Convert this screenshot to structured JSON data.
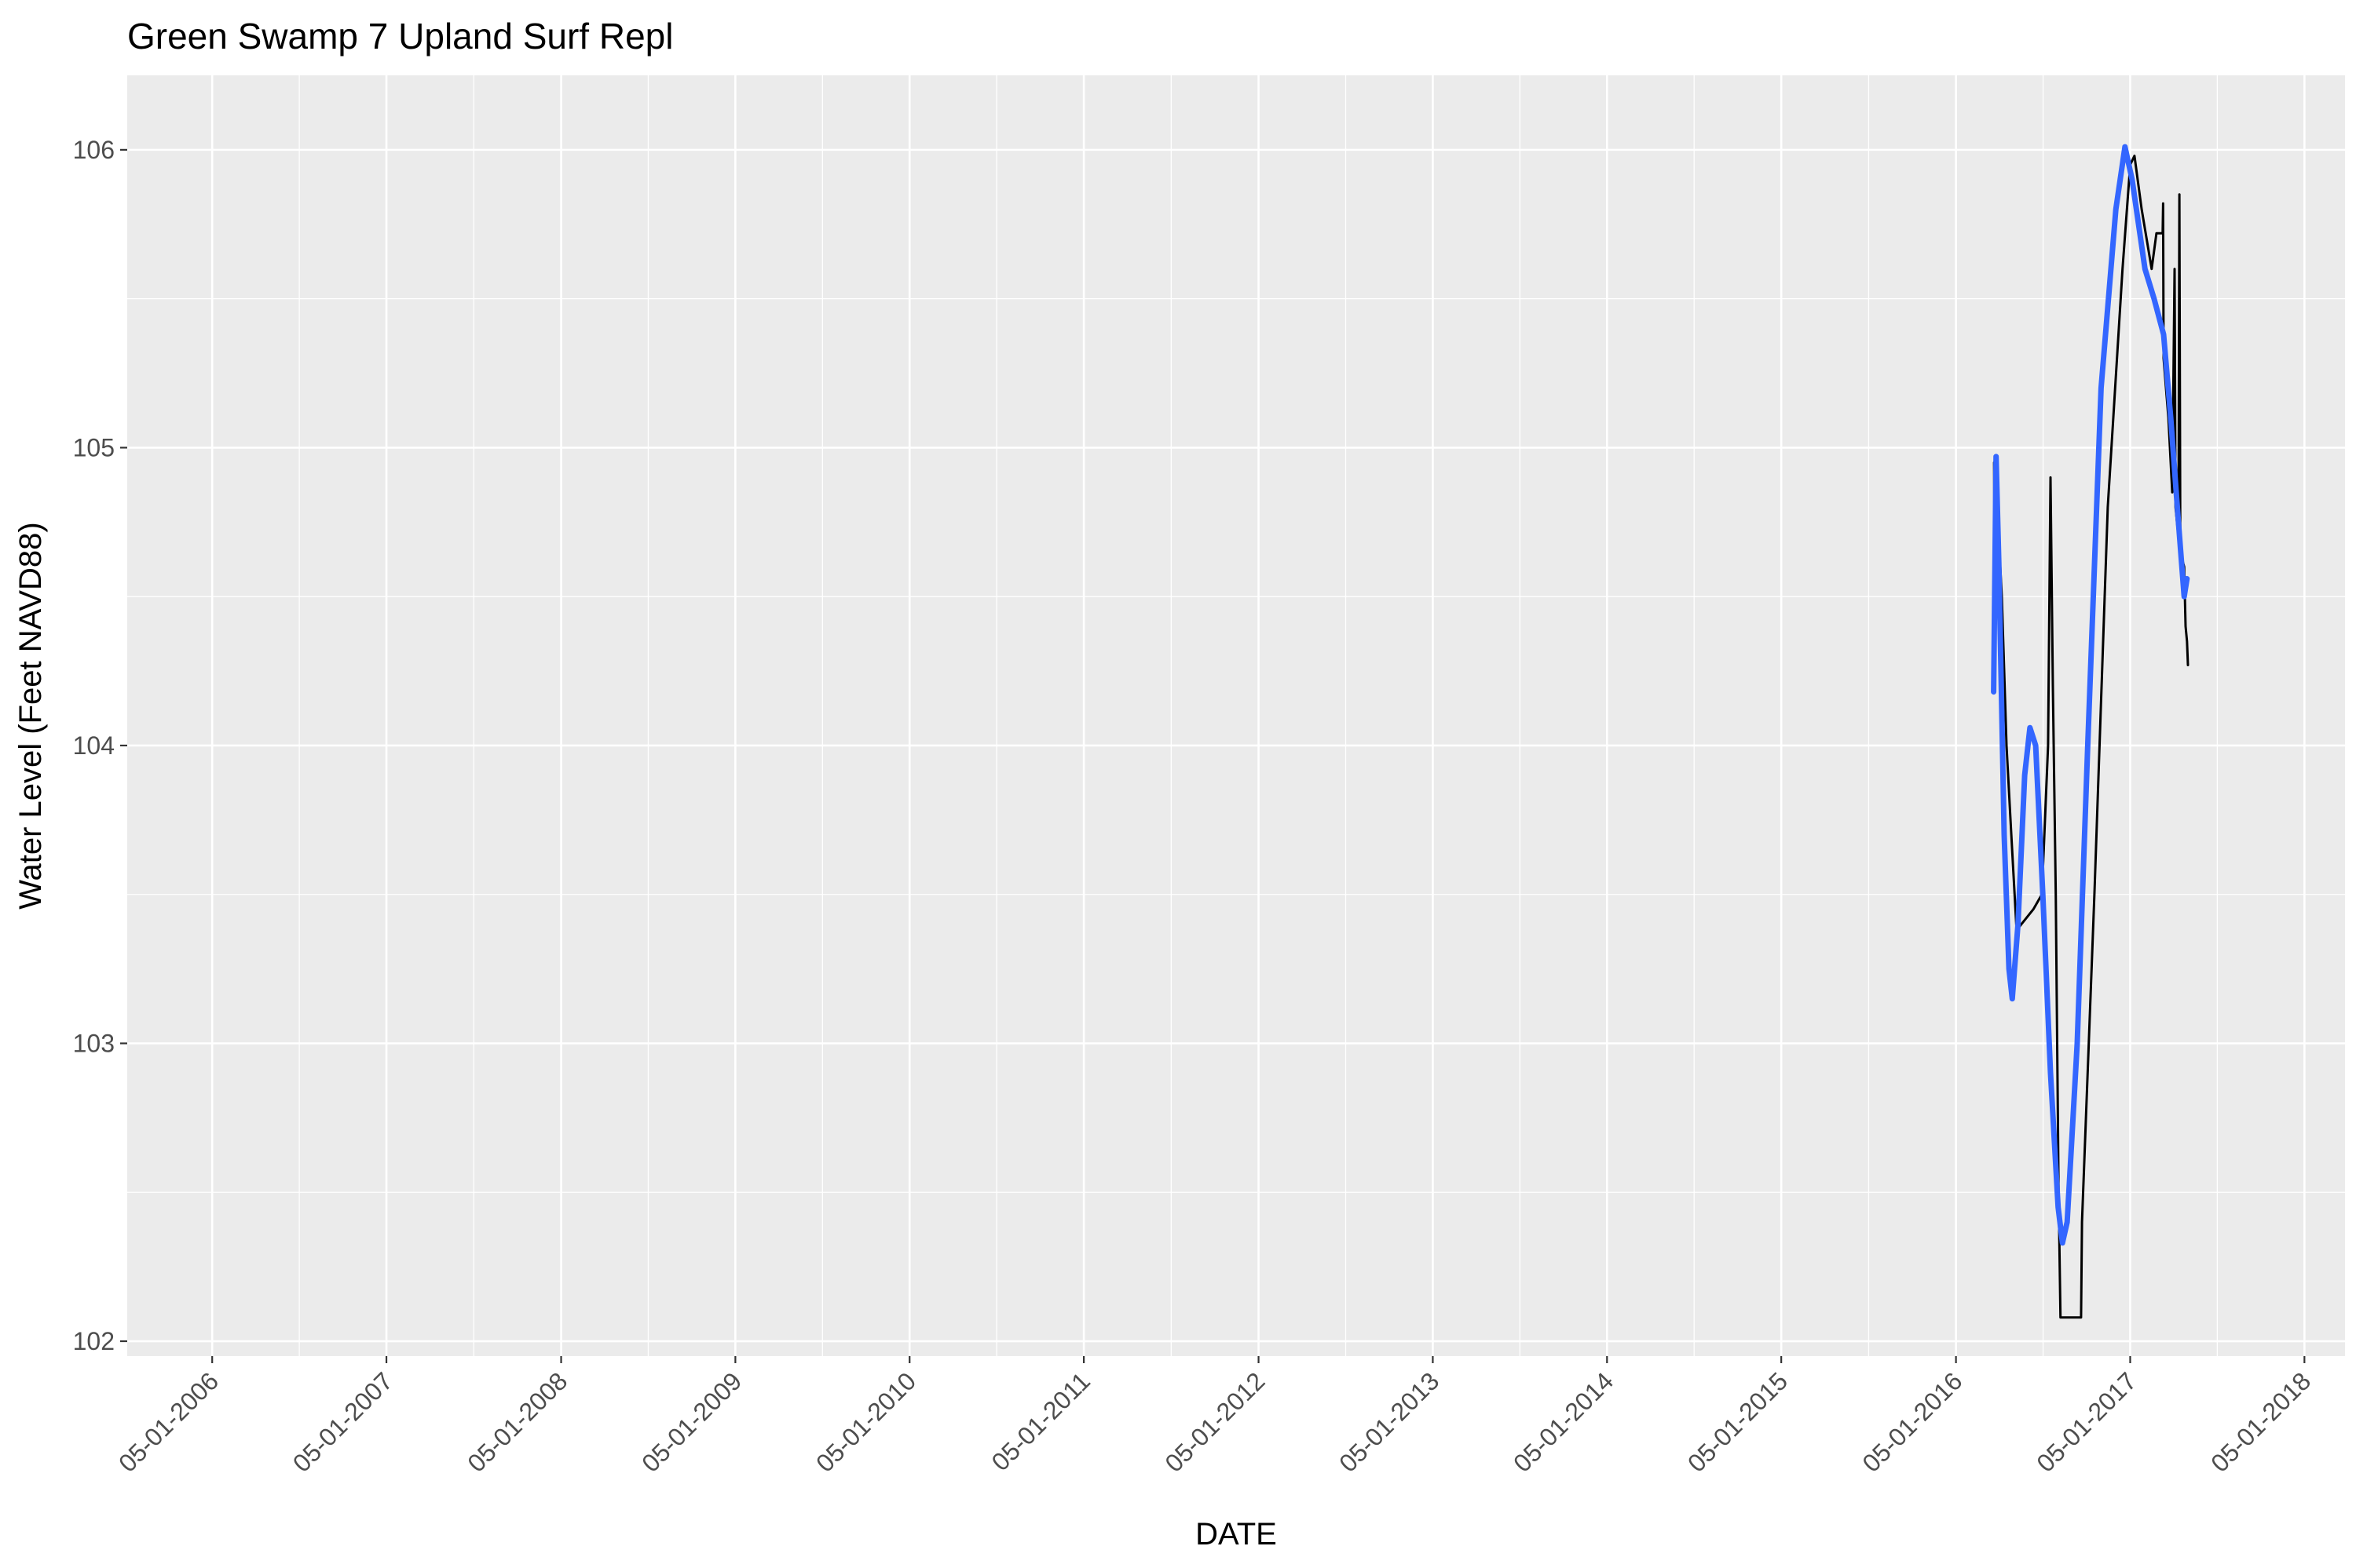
{
  "chart_data": {
    "type": "line",
    "title": "Green Swamp 7 Upland Surf Repl",
    "xlabel": "DATE",
    "ylabel": "Water Level (Feet NAVD88)",
    "x_range": [
      "2005-11-04",
      "2018-07-25"
    ],
    "x_ticks": [
      {
        "date": "2006-05-01",
        "label": "05-01-2006"
      },
      {
        "date": "2007-05-01",
        "label": "05-01-2007"
      },
      {
        "date": "2008-05-01",
        "label": "05-01-2008"
      },
      {
        "date": "2009-05-01",
        "label": "05-01-2009"
      },
      {
        "date": "2010-05-01",
        "label": "05-01-2010"
      },
      {
        "date": "2011-05-01",
        "label": "05-01-2011"
      },
      {
        "date": "2012-05-01",
        "label": "05-01-2012"
      },
      {
        "date": "2013-05-01",
        "label": "05-01-2013"
      },
      {
        "date": "2014-05-01",
        "label": "05-01-2014"
      },
      {
        "date": "2015-05-01",
        "label": "05-01-2015"
      },
      {
        "date": "2016-05-01",
        "label": "05-01-2016"
      },
      {
        "date": "2017-05-01",
        "label": "05-01-2017"
      },
      {
        "date": "2018-05-01",
        "label": "05-01-2018"
      }
    ],
    "y_range": [
      101.95,
      106.25
    ],
    "y_ticks": [
      102,
      103,
      104,
      105,
      106
    ],
    "y_tick_labels": [
      "102",
      "103",
      "104",
      "105",
      "106"
    ],
    "grid": true,
    "legend": "none",
    "series": [
      {
        "color": "#000000",
        "points": [
          [
            "2016-07-20",
            104.95
          ],
          [
            "2016-07-21",
            104.6
          ],
          [
            "2016-07-22",
            104.93
          ],
          [
            "2016-08-05",
            104.5
          ],
          [
            "2016-08-15",
            104.0
          ],
          [
            "2016-08-25",
            103.7
          ],
          [
            "2016-09-05",
            103.38
          ],
          [
            "2016-09-15",
            103.4
          ],
          [
            "2016-10-10",
            103.45
          ],
          [
            "2016-10-28",
            103.5
          ],
          [
            "2016-11-10",
            104.0
          ],
          [
            "2016-11-15",
            104.9
          ],
          [
            "2016-11-20",
            104.2
          ],
          [
            "2016-11-26",
            103.5
          ],
          [
            "2016-12-02",
            102.5
          ],
          [
            "2016-12-06",
            102.08
          ],
          [
            "2017-01-18",
            102.08
          ],
          [
            "2017-01-20",
            102.4
          ],
          [
            "2017-02-15",
            103.5
          ],
          [
            "2017-03-15",
            104.8
          ],
          [
            "2017-04-15",
            105.6
          ],
          [
            "2017-05-01",
            105.95
          ],
          [
            "2017-05-10",
            105.98
          ],
          [
            "2017-05-25",
            105.8
          ],
          [
            "2017-06-15",
            105.6
          ],
          [
            "2017-06-25",
            105.72
          ],
          [
            "2017-07-08",
            105.72
          ],
          [
            "2017-07-09",
            105.82
          ],
          [
            "2017-07-10",
            105.3
          ],
          [
            "2017-07-20",
            105.1
          ],
          [
            "2017-07-28",
            104.85
          ],
          [
            "2017-08-02",
            105.6
          ],
          [
            "2017-08-04",
            104.8
          ],
          [
            "2017-08-10",
            104.7
          ],
          [
            "2017-08-12",
            105.85
          ],
          [
            "2017-08-14",
            104.65
          ],
          [
            "2017-08-22",
            104.6
          ],
          [
            "2017-08-25",
            104.4
          ],
          [
            "2017-08-28",
            104.35
          ],
          [
            "2017-08-30",
            104.27
          ]
        ]
      },
      {
        "color": "#3366ff",
        "points": [
          [
            "2016-07-19",
            104.18
          ],
          [
            "2016-07-24",
            104.97
          ],
          [
            "2016-07-30",
            104.6
          ],
          [
            "2016-08-10",
            103.7
          ],
          [
            "2016-08-20",
            103.25
          ],
          [
            "2016-08-27",
            103.15
          ],
          [
            "2016-09-08",
            103.4
          ],
          [
            "2016-09-22",
            103.9
          ],
          [
            "2016-10-03",
            104.06
          ],
          [
            "2016-10-15",
            104.0
          ],
          [
            "2016-10-30",
            103.5
          ],
          [
            "2016-11-15",
            102.9
          ],
          [
            "2016-12-01",
            102.45
          ],
          [
            "2016-12-10",
            102.33
          ],
          [
            "2016-12-20",
            102.4
          ],
          [
            "2017-01-10",
            103.0
          ],
          [
            "2017-02-01",
            104.0
          ],
          [
            "2017-03-01",
            105.2
          ],
          [
            "2017-04-01",
            105.8
          ],
          [
            "2017-04-20",
            106.01
          ],
          [
            "2017-05-05",
            105.9
          ],
          [
            "2017-06-01",
            105.6
          ],
          [
            "2017-06-20",
            105.5
          ],
          [
            "2017-07-10",
            105.38
          ],
          [
            "2017-07-25",
            105.1
          ],
          [
            "2017-08-10",
            104.75
          ],
          [
            "2017-08-22",
            104.5
          ],
          [
            "2017-08-28",
            104.56
          ]
        ]
      }
    ]
  }
}
